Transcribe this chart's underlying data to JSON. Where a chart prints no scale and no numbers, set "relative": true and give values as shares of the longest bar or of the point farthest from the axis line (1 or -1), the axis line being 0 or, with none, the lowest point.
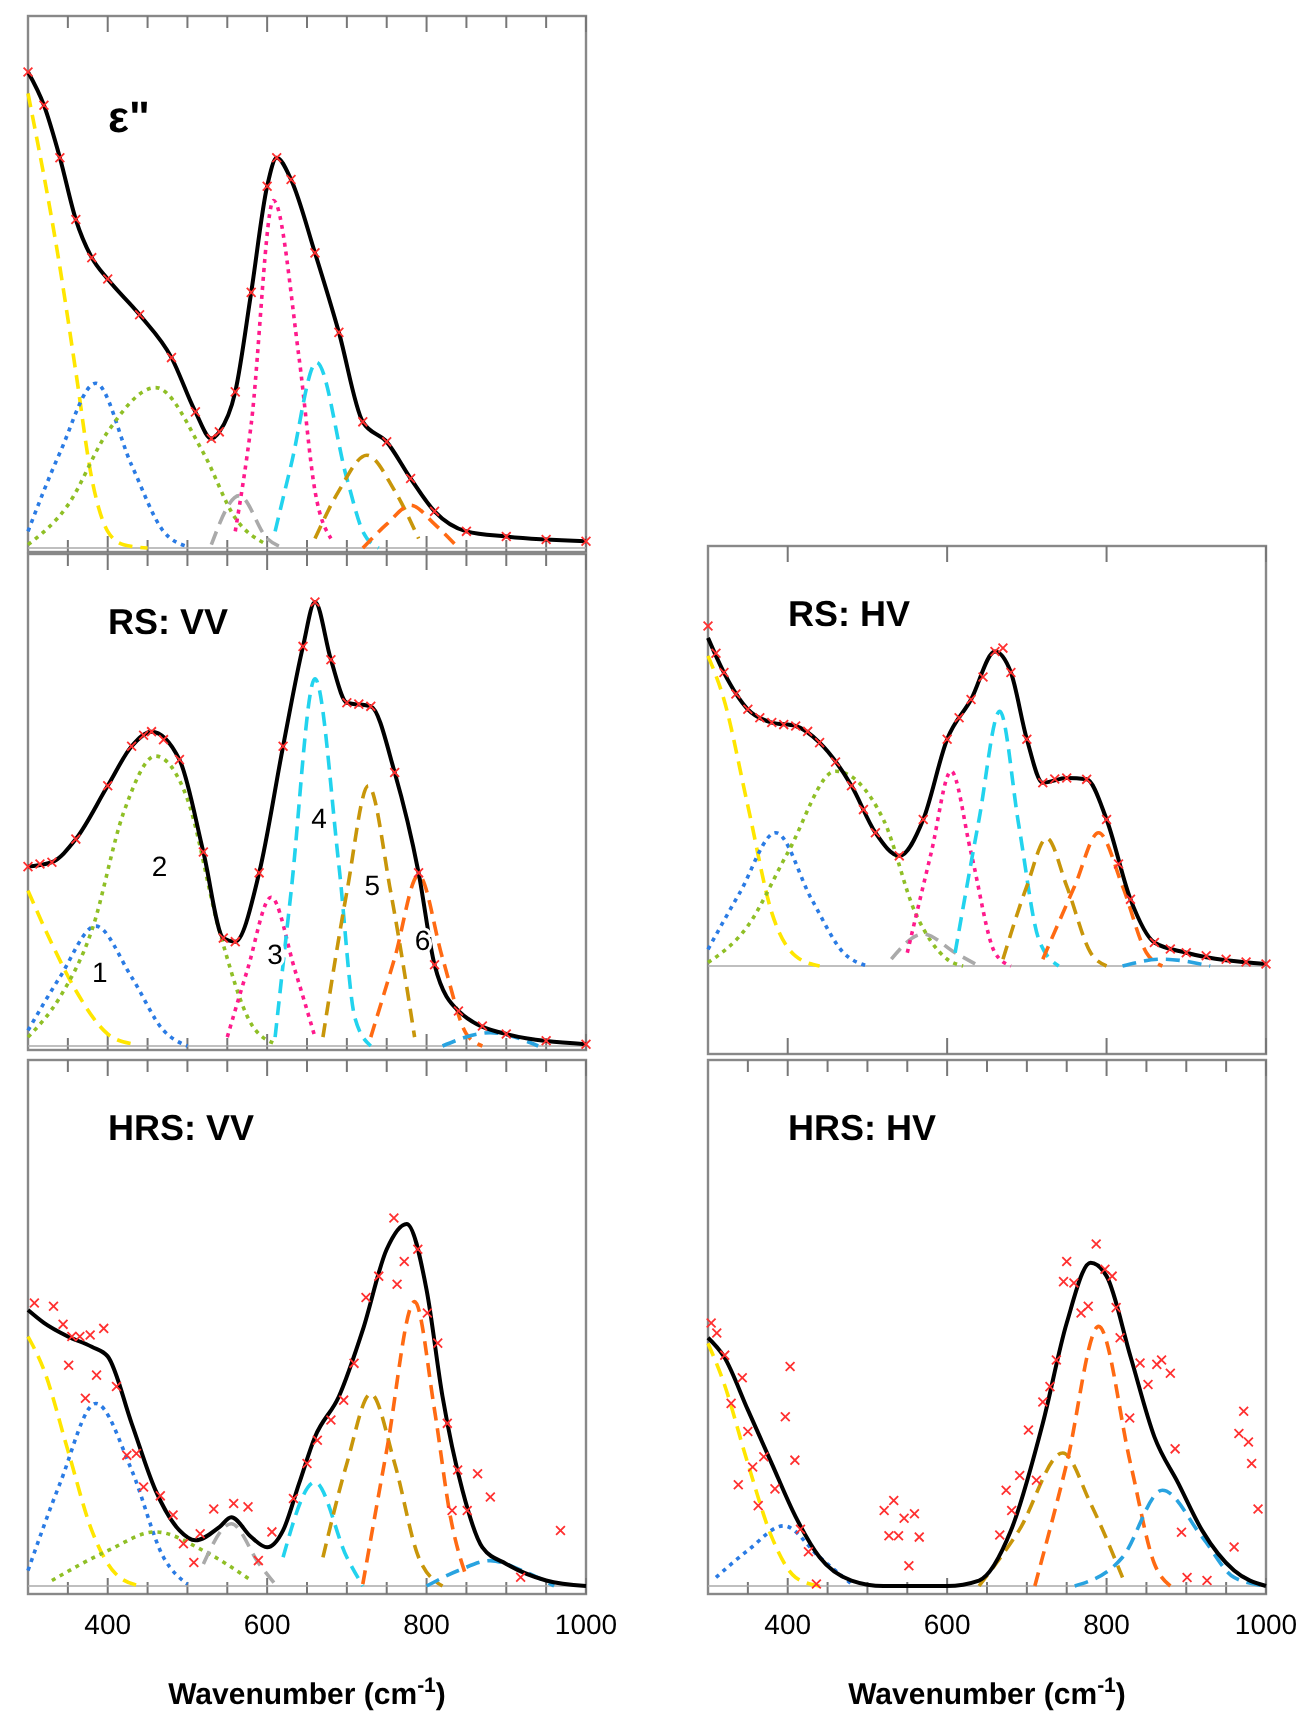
{
  "chart_data": [
    {
      "type": "line",
      "title": "ε\"",
      "relative": true,
      "tick_labels": false,
      "xlim": [
        300,
        1000
      ],
      "xticks": [
        {
          "value": 350,
          "label": null
        },
        400,
        {
          "value": 450,
          "label": null
        },
        {
          "value": 500,
          "label": null
        },
        {
          "value": 550,
          "label": null
        },
        600,
        {
          "value": 650,
          "label": null
        },
        {
          "value": 700,
          "label": null
        },
        {
          "value": 750,
          "label": null
        },
        800,
        {
          "value": 850,
          "label": null
        },
        {
          "value": 900,
          "label": null
        },
        {
          "value": 950,
          "label": null
        },
        1000
      ],
      "series": [
        {
          "color": "#ffe600",
          "line_style": "dashed",
          "x": [
            300,
            340,
            360,
            380,
            400,
            420,
            450
          ],
          "values": [
            0.955,
            0.59,
            0.37,
            0.146,
            0.035,
            0.007,
            0
          ]
        },
        {
          "color": "#2a7be4",
          "line_style": "dotted",
          "x": [
            300,
            340,
            385,
            430,
            470,
            500
          ],
          "values": [
            0.035,
            0.2,
            0.346,
            0.174,
            0.035,
            0.003
          ]
        },
        {
          "color": "#8fbf26",
          "line_style": "dotted",
          "x": [
            300,
            350,
            400,
            460,
            520,
            560,
            600
          ],
          "values": [
            0.007,
            0.09,
            0.244,
            0.337,
            0.2,
            0.063,
            0.007
          ]
        },
        {
          "color": "#aaaaaa",
          "line_style": "dashed",
          "x": [
            530,
            565,
            600,
            620
          ],
          "values": [
            0.007,
            0.11,
            0.02,
            0
          ]
        },
        {
          "color": "#ff1a8c",
          "line_style": "dotted",
          "x": [
            560,
            580,
            608,
            640,
            660,
            680
          ],
          "values": [
            0.035,
            0.26,
            0.73,
            0.4,
            0.12,
            0.02
          ]
        },
        {
          "color": "#22d3ee",
          "line_style": "dashed",
          "x": [
            610,
            630,
            662,
            700,
            720,
            740
          ],
          "values": [
            0.035,
            0.174,
            0.39,
            0.146,
            0.035,
            0
          ]
        },
        {
          "color": "#c8960a",
          "line_style": "dashed",
          "x": [
            660,
            690,
            725,
            760,
            790
          ],
          "values": [
            0.02,
            0.12,
            0.195,
            0.12,
            0.02
          ]
        },
        {
          "color": "#ff6a13",
          "line_style": "dashed",
          "x": [
            720,
            750,
            780,
            810,
            840
          ],
          "values": [
            0,
            0.05,
            0.09,
            0.05,
            0
          ]
        },
        {
          "type": "scatter",
          "marker": "cross",
          "color": "#ff3030",
          "x": [
            300,
            320,
            340,
            360,
            380,
            400,
            440,
            480,
            510,
            530,
            540,
            560,
            580,
            600,
            612,
            630,
            660,
            690,
            720,
            750,
            780,
            810,
            850,
            900,
            950,
            1000
          ],
          "values": [
            1.0,
            0.93,
            0.82,
            0.69,
            0.61,
            0.565,
            0.49,
            0.4,
            0.286,
            0.23,
            0.244,
            0.328,
            0.537,
            0.76,
            0.82,
            0.774,
            0.62,
            0.453,
            0.265,
            0.223,
            0.146,
            0.077,
            0.035,
            0.024,
            0.018,
            0.014
          ]
        },
        {
          "color": "#000000",
          "line_style": "solid",
          "x": [
            300,
            320,
            340,
            360,
            380,
            400,
            440,
            480,
            510,
            530,
            540,
            560,
            580,
            600,
            612,
            630,
            660,
            690,
            720,
            750,
            780,
            810,
            850,
            900,
            1000
          ],
          "values": [
            1.0,
            0.93,
            0.82,
            0.69,
            0.61,
            0.565,
            0.49,
            0.4,
            0.286,
            0.23,
            0.244,
            0.328,
            0.537,
            0.76,
            0.82,
            0.774,
            0.62,
            0.453,
            0.265,
            0.223,
            0.146,
            0.077,
            0.035,
            0.024,
            0.014
          ]
        }
      ]
    },
    {
      "type": "line",
      "title": "RS: VV",
      "relative": true,
      "tick_labels": false,
      "xlim": [
        300,
        1000
      ],
      "xticks": [
        {
          "value": 350,
          "label": null
        },
        400,
        {
          "value": 450,
          "label": null
        },
        {
          "value": 500,
          "label": null
        },
        {
          "value": 550,
          "label": null
        },
        600,
        {
          "value": 650,
          "label": null
        },
        {
          "value": 700,
          "label": null
        },
        {
          "value": 750,
          "label": null
        },
        800,
        {
          "value": 850,
          "label": null
        },
        {
          "value": 900,
          "label": null
        },
        {
          "value": 950,
          "label": null
        },
        1000
      ],
      "annotations": [
        "1",
        "2",
        "3",
        "4",
        "5",
        "6"
      ],
      "series": [
        {
          "color": "#ffe600",
          "line_style": "dashed",
          "x": [
            300,
            330,
            360,
            400,
            430
          ],
          "values": [
            0.35,
            0.23,
            0.125,
            0.027,
            0.005
          ]
        },
        {
          "color": "#2a7be4",
          "line_style": "dotted",
          "x": [
            300,
            340,
            385,
            430,
            470,
            500
          ],
          "values": [
            0.035,
            0.155,
            0.27,
            0.155,
            0.035,
            0
          ]
        },
        {
          "color": "#8fbf26",
          "line_style": "dotted",
          "x": [
            300,
            340,
            380,
            420,
            460,
            500,
            540,
            580,
            610
          ],
          "values": [
            0.02,
            0.11,
            0.26,
            0.526,
            0.653,
            0.556,
            0.26,
            0.05,
            0.005
          ]
        },
        {
          "color": "#ff1a8c",
          "line_style": "dotted",
          "x": [
            550,
            575,
            605,
            635,
            660
          ],
          "values": [
            0.02,
            0.17,
            0.335,
            0.17,
            0.02
          ]
        },
        {
          "color": "#22d3ee",
          "line_style": "dashed",
          "x": [
            610,
            630,
            660,
            690,
            710,
            730
          ],
          "values": [
            0.02,
            0.347,
            0.827,
            0.407,
            0.064,
            0
          ]
        },
        {
          "color": "#c8960a",
          "line_style": "dashed",
          "x": [
            670,
            700,
            727,
            755,
            785
          ],
          "values": [
            0.02,
            0.347,
            0.586,
            0.347,
            0.02
          ]
        },
        {
          "color": "#ff6a13",
          "line_style": "dashed",
          "x": [
            730,
            760,
            790,
            820,
            850,
            870
          ],
          "values": [
            0.02,
            0.198,
            0.385,
            0.198,
            0.027,
            0
          ]
        },
        {
          "color": "#29a3e0",
          "line_style": "dashed",
          "x": [
            820,
            880,
            940
          ],
          "values": [
            0,
            0.03,
            0
          ]
        },
        {
          "type": "scatter",
          "marker": "cross",
          "color": "#ff3030",
          "x": [
            300,
            315,
            330,
            360,
            400,
            430,
            445,
            455,
            470,
            490,
            520,
            545,
            560,
            590,
            620,
            645,
            660,
            680,
            700,
            715,
            730,
            760,
            790,
            810,
            840,
            870,
            900,
            950,
            1000
          ],
          "values": [
            0.404,
            0.41,
            0.414,
            0.466,
            0.586,
            0.675,
            0.7,
            0.708,
            0.69,
            0.645,
            0.437,
            0.243,
            0.235,
            0.39,
            0.675,
            0.9,
            1.0,
            0.87,
            0.773,
            0.77,
            0.765,
            0.616,
            0.39,
            0.183,
            0.079,
            0.045,
            0.027,
            0.012,
            0.004
          ]
        },
        {
          "color": "#000000",
          "line_style": "solid",
          "x": [
            300,
            330,
            360,
            400,
            430,
            455,
            490,
            520,
            545,
            560,
            590,
            620,
            645,
            660,
            680,
            700,
            730,
            760,
            790,
            810,
            840,
            900,
            1000
          ],
          "values": [
            0.404,
            0.414,
            0.466,
            0.586,
            0.675,
            0.708,
            0.645,
            0.437,
            0.243,
            0.235,
            0.39,
            0.675,
            0.9,
            1.0,
            0.87,
            0.773,
            0.765,
            0.616,
            0.39,
            0.183,
            0.079,
            0.027,
            0.004
          ]
        }
      ]
    },
    {
      "type": "line",
      "title": "RS: HV",
      "relative": true,
      "tick_labels": false,
      "xlim": [
        300,
        1000
      ],
      "xticks": [
        400,
        600,
        800,
        1000
      ],
      "series": [
        {
          "color": "#ffe600",
          "line_style": "dashed",
          "x": [
            300,
            320,
            350,
            380,
            410,
            440
          ],
          "values": [
            0.912,
            0.784,
            0.471,
            0.157,
            0.029,
            0
          ]
        },
        {
          "color": "#2a7be4",
          "line_style": "dotted",
          "x": [
            300,
            340,
            385,
            430,
            470,
            500
          ],
          "values": [
            0.049,
            0.216,
            0.392,
            0.196,
            0.039,
            0
          ]
        },
        {
          "color": "#8fbf26",
          "line_style": "dotted",
          "x": [
            300,
            350,
            400,
            460,
            520,
            560,
            600,
            620
          ],
          "values": [
            0.01,
            0.118,
            0.333,
            0.573,
            0.431,
            0.157,
            0.02,
            0
          ]
        },
        {
          "color": "#aaaaaa",
          "line_style": "dashed",
          "x": [
            530,
            570,
            610,
            640
          ],
          "values": [
            0.02,
            0.094,
            0.039,
            0
          ]
        },
        {
          "color": "#ff1a8c",
          "line_style": "dotted",
          "x": [
            550,
            580,
            605,
            630,
            660,
            680
          ],
          "values": [
            0.039,
            0.333,
            0.573,
            0.333,
            0.039,
            0
          ]
        },
        {
          "color": "#22d3ee",
          "line_style": "dashed",
          "x": [
            610,
            640,
            666,
            690,
            715,
            740
          ],
          "values": [
            0.039,
            0.431,
            0.749,
            0.412,
            0.078,
            0
          ]
        },
        {
          "color": "#c8960a",
          "line_style": "dashed",
          "x": [
            670,
            700,
            725,
            750,
            780,
            800
          ],
          "values": [
            0.02,
            0.235,
            0.376,
            0.235,
            0.039,
            0
          ]
        },
        {
          "color": "#ff6a13",
          "line_style": "dashed",
          "x": [
            720,
            760,
            790,
            820,
            850,
            870
          ],
          "values": [
            0.02,
            0.235,
            0.392,
            0.235,
            0.039,
            0
          ]
        },
        {
          "color": "#29a3e0",
          "line_style": "dashed",
          "x": [
            820,
            870,
            930
          ],
          "values": [
            0,
            0.02,
            0
          ]
        },
        {
          "type": "scatter",
          "marker": "cross",
          "color": "#ff3030",
          "x": [
            300,
            310,
            320,
            335,
            350,
            365,
            380,
            395,
            410,
            425,
            440,
            460,
            480,
            495,
            510,
            540,
            570,
            600,
            615,
            630,
            645,
            660,
            670,
            680,
            700,
            720,
            735,
            750,
            775,
            800,
            815,
            830,
            860,
            880,
            900,
            925,
            950,
            975,
            1000
          ],
          "values": [
            1.0,
            0.92,
            0.863,
            0.8,
            0.755,
            0.73,
            0.716,
            0.71,
            0.706,
            0.69,
            0.657,
            0.6,
            0.53,
            0.46,
            0.392,
            0.324,
            0.431,
            0.667,
            0.73,
            0.784,
            0.85,
            0.925,
            0.935,
            0.863,
            0.667,
            0.539,
            0.55,
            0.553,
            0.549,
            0.431,
            0.3,
            0.196,
            0.069,
            0.05,
            0.039,
            0.03,
            0.02,
            0.012,
            0.006
          ]
        },
        {
          "color": "#000000",
          "line_style": "solid",
          "x": [
            300,
            320,
            350,
            380,
            410,
            440,
            480,
            510,
            540,
            570,
            600,
            630,
            660,
            680,
            700,
            720,
            750,
            775,
            800,
            830,
            860,
            900,
            1000
          ],
          "values": [
            0.965,
            0.863,
            0.755,
            0.716,
            0.706,
            0.657,
            0.53,
            0.392,
            0.324,
            0.431,
            0.667,
            0.784,
            0.925,
            0.863,
            0.667,
            0.539,
            0.553,
            0.549,
            0.431,
            0.196,
            0.069,
            0.039,
            0.006
          ]
        }
      ]
    },
    {
      "type": "line",
      "title": "HRS: VV",
      "xlabel": "Wavenumber (cm$^{-1}$)",
      "relative": true,
      "tick_labels": "x",
      "xlim": [
        300,
        1000
      ],
      "xticks": [
        {
          "value": 350,
          "label": null
        },
        400,
        {
          "value": 450,
          "label": null
        },
        {
          "value": 500,
          "label": null
        },
        {
          "value": 550,
          "label": null
        },
        600,
        {
          "value": 650,
          "label": null
        },
        {
          "value": 700,
          "label": null
        },
        {
          "value": 750,
          "label": null
        },
        800,
        {
          "value": 850,
          "label": null
        },
        {
          "value": 900,
          "label": null
        },
        {
          "value": 950,
          "label": null
        },
        1000
      ],
      "series": [
        {
          "color": "#ffe600",
          "line_style": "dashed",
          "x": [
            300,
            320,
            350,
            380,
            410,
            440
          ],
          "values": [
            0.678,
            0.587,
            0.369,
            0.151,
            0.033,
            0
          ]
        },
        {
          "color": "#2a7be4",
          "line_style": "dotted",
          "x": [
            300,
            340,
            385,
            430,
            470,
            500
          ],
          "values": [
            0.042,
            0.278,
            0.496,
            0.315,
            0.078,
            0.005
          ]
        },
        {
          "color": "#8fbf26",
          "line_style": "dotted",
          "x": [
            330,
            400,
            460,
            520,
            580
          ],
          "values": [
            0.015,
            0.096,
            0.147,
            0.096,
            0.015
          ]
        },
        {
          "color": "#aaaaaa",
          "line_style": "dashed",
          "x": [
            520,
            555,
            590,
            610
          ],
          "values": [
            0.06,
            0.169,
            0.06,
            0.005
          ]
        },
        {
          "color": "#22d3ee",
          "line_style": "dashed",
          "x": [
            620,
            660,
            700,
            720
          ],
          "values": [
            0.078,
            0.282,
            0.078,
            0
          ]
        },
        {
          "color": "#c8960a",
          "line_style": "dashed",
          "x": [
            670,
            700,
            730,
            760,
            790,
            820
          ],
          "values": [
            0.078,
            0.333,
            0.522,
            0.333,
            0.078,
            0
          ]
        },
        {
          "color": "#ff6a13",
          "line_style": "dashed",
          "x": [
            720,
            750,
            785,
            810,
            830,
            850
          ],
          "values": [
            0.005,
            0.369,
            0.773,
            0.478,
            0.187,
            0.024
          ]
        },
        {
          "color": "#29a3e0",
          "line_style": "dashed",
          "x": [
            800,
            840,
            880,
            920,
            960
          ],
          "values": [
            0,
            0.042,
            0.069,
            0.042,
            0
          ]
        },
        {
          "type": "scatter",
          "marker": "cross",
          "color": "#ff3030",
          "x": [
            308,
            332,
            344,
            355,
            365,
            378,
            395,
            351,
            372,
            386,
            411,
            424,
            436,
            445,
            466,
            482,
            495,
            508,
            516,
            533,
            558,
            576,
            589,
            606,
            633,
            650,
            663,
            680,
            696,
            709,
            724,
            740,
            759,
            763,
            772,
            789,
            801,
            814,
            826,
            832,
            839,
            851,
            864,
            880,
            918,
            968
          ],
          "values": [
            0.769,
            0.76,
            0.711,
            0.678,
            0.678,
            0.682,
            0.7,
            0.6,
            0.51,
            0.573,
            0.542,
            0.355,
            0.36,
            0.269,
            0.245,
            0.193,
            0.115,
            0.064,
            0.142,
            0.209,
            0.224,
            0.215,
            0.069,
            0.147,
            0.238,
            0.333,
            0.396,
            0.451,
            0.505,
            0.605,
            0.784,
            0.842,
            1.0,
            0.82,
            0.882,
            0.915,
            0.742,
            0.66,
            0.442,
            0.205,
            0.315,
            0.205,
            0.305,
            0.242,
            0.024,
            0.151
          ]
        },
        {
          "color": "#000000",
          "line_style": "solid",
          "x": [
            300,
            320,
            350,
            380,
            400,
            430,
            460,
            490,
            510,
            540,
            555,
            580,
            600,
            620,
            640,
            660,
            690,
            720,
            750,
            775,
            800,
            820,
            845,
            870,
            900,
            950,
            1000
          ],
          "values": [
            0.75,
            0.715,
            0.678,
            0.65,
            0.624,
            0.442,
            0.26,
            0.151,
            0.124,
            0.16,
            0.187,
            0.133,
            0.105,
            0.151,
            0.278,
            0.405,
            0.515,
            0.696,
            0.915,
            0.984,
            0.805,
            0.515,
            0.26,
            0.105,
            0.06,
            0.015,
            0
          ]
        }
      ]
    },
    {
      "type": "line",
      "title": "HRS: HV",
      "xlabel": "Wavenumber (cm$^{-1}$)",
      "relative": true,
      "tick_labels": "x",
      "xlim": [
        300,
        1000
      ],
      "xticks": [
        {
          "value": 350,
          "label": null
        },
        400,
        {
          "value": 450,
          "label": null
        },
        {
          "value": 500,
          "label": null
        },
        {
          "value": 550,
          "label": null
        },
        600,
        {
          "value": 650,
          "label": null
        },
        {
          "value": 700,
          "label": null
        },
        {
          "value": 750,
          "label": null
        },
        800,
        {
          "value": 850,
          "label": null
        },
        {
          "value": 900,
          "label": null
        },
        {
          "value": 950,
          "label": null
        },
        1000
      ],
      "series": [
        {
          "color": "#ffe600",
          "line_style": "dashed",
          "x": [
            300,
            320,
            350,
            380,
            410,
            440
          ],
          "values": [
            0.71,
            0.593,
            0.358,
            0.143,
            0.025,
            0
          ]
        },
        {
          "color": "#2a7be4",
          "line_style": "dotted",
          "x": [
            310,
            350,
            395,
            440,
            480
          ],
          "values": [
            0.025,
            0.104,
            0.176,
            0.084,
            0.006
          ]
        },
        {
          "color": "#c8960a",
          "line_style": "dashed",
          "x": [
            640,
            690,
            745,
            780,
            820
          ],
          "values": [
            0,
            0.162,
            0.389,
            0.241,
            0.025
          ]
        },
        {
          "color": "#ff6a13",
          "line_style": "dashed",
          "x": [
            710,
            750,
            790,
            830,
            860,
            880
          ],
          "values": [
            0,
            0.358,
            0.759,
            0.358,
            0.065,
            0
          ]
        },
        {
          "color": "#29a3e0",
          "line_style": "dashed",
          "x": [
            760,
            820,
            870,
            920,
            960,
            1000
          ],
          "values": [
            0,
            0.084,
            0.28,
            0.143,
            0.025,
            0
          ]
        },
        {
          "type": "scatter",
          "marker": "cross",
          "color": "#ff3030",
          "x": [
            304,
            311,
            321,
            329,
            343,
            350,
            356,
            363,
            370,
            338,
            384,
            397,
            403,
            409,
            416,
            426,
            436,
            521,
            533,
            527,
            539,
            546,
            559,
            565,
            552,
            666,
            674,
            681,
            691,
            702,
            712,
            720,
            729,
            737,
            750,
            746,
            759,
            768,
            777,
            787,
            798,
            807,
            812,
            817,
            829,
            842,
            852,
            863,
            869,
            880,
            886,
            901,
            926,
            960,
            966,
            972,
            978,
            982,
            990,
            894
          ],
          "values": [
            0.769,
            0.74,
            0.675,
            0.534,
            0.609,
            0.452,
            0.348,
            0.235,
            0.378,
            0.296,
            0.284,
            0.495,
            0.642,
            0.368,
            0.166,
            0.1,
            0.006,
            0.221,
            0.25,
            0.147,
            0.147,
            0.198,
            0.211,
            0.143,
            0.059,
            0.149,
            0.28,
            0.221,
            0.323,
            0.456,
            0.309,
            0.538,
            0.583,
            0.661,
            0.949,
            0.89,
            0.886,
            0.798,
            0.818,
            1.0,
            0.926,
            0.906,
            0.814,
            0.726,
            0.491,
            0.652,
            0.589,
            0.648,
            0.661,
            0.622,
            0.401,
            0.025,
            0.016,
            0.114,
            0.446,
            0.511,
            0.421,
            0.358,
            0.225,
            0.157
          ]
        },
        {
          "color": "#000000",
          "line_style": "solid",
          "x": [
            300,
            320,
            350,
            380,
            410,
            440,
            480,
            520,
            600,
            640,
            680,
            720,
            750,
            780,
            800,
            830,
            860,
            890,
            920,
            960,
            1000
          ],
          "values": [
            0.726,
            0.671,
            0.515,
            0.358,
            0.202,
            0.084,
            0.016,
            0,
            0,
            0.016,
            0.162,
            0.476,
            0.769,
            0.945,
            0.906,
            0.671,
            0.436,
            0.3,
            0.162,
            0.045,
            0
          ]
        }
      ]
    }
  ]
}
